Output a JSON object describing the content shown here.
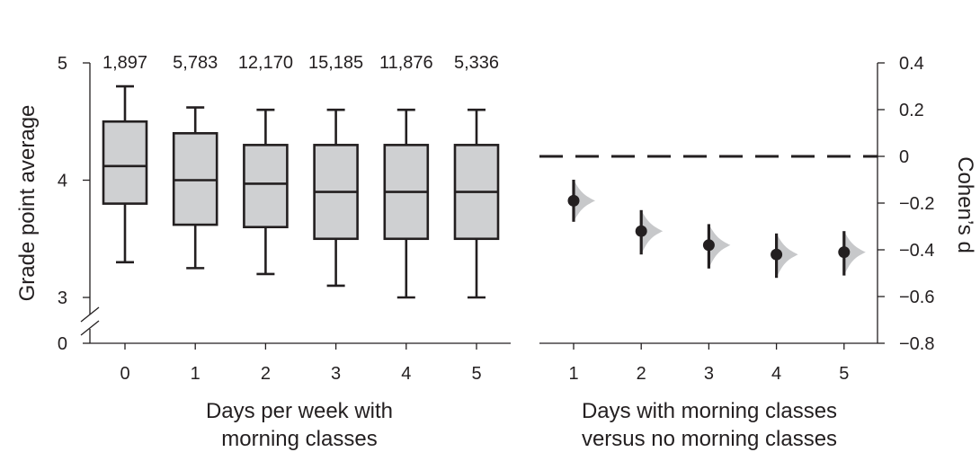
{
  "chart_data": [
    {
      "type": "box",
      "ylabel": "Grade point average",
      "xlabel_lines": [
        "Days per week with",
        "morning classes"
      ],
      "categories": [
        "0",
        "1",
        "2",
        "3",
        "4",
        "5"
      ],
      "counts": [
        "1,897",
        "5,783",
        "12,170",
        "15,185",
        "11,876",
        "5,336"
      ],
      "y_ticks": [
        "0",
        "3",
        "4",
        "5"
      ],
      "y_axis_break": [
        0,
        3
      ],
      "ylim": [
        3,
        5
      ],
      "boxes": [
        {
          "whisker_low": 3.3,
          "q1": 3.8,
          "median": 4.12,
          "q3": 4.5,
          "whisker_high": 4.8
        },
        {
          "whisker_low": 3.25,
          "q1": 3.62,
          "median": 4.0,
          "q3": 4.4,
          "whisker_high": 4.62
        },
        {
          "whisker_low": 3.2,
          "q1": 3.6,
          "median": 3.97,
          "q3": 4.3,
          "whisker_high": 4.6
        },
        {
          "whisker_low": 3.1,
          "q1": 3.5,
          "median": 3.9,
          "q3": 4.3,
          "whisker_high": 4.6
        },
        {
          "whisker_low": 3.0,
          "q1": 3.5,
          "median": 3.9,
          "q3": 4.3,
          "whisker_high": 4.6
        },
        {
          "whisker_low": 3.0,
          "q1": 3.5,
          "median": 3.9,
          "q3": 4.3,
          "whisker_high": 4.6
        }
      ]
    },
    {
      "type": "scatter",
      "ylabel": "Cohen’s d",
      "xlabel_lines": [
        "Days with morning classes",
        "versus no morning classes"
      ],
      "categories": [
        "1",
        "2",
        "3",
        "4",
        "5"
      ],
      "y_ticks": [
        "0.4",
        "0.2",
        "0",
        "−0.2",
        "−0.4",
        "−0.6",
        "−0.8"
      ],
      "ylim": [
        -0.8,
        0.4
      ],
      "reference_line": 0,
      "points": [
        {
          "x": "1",
          "d": -0.19,
          "ci_low": -0.28,
          "ci_high": -0.1
        },
        {
          "x": "2",
          "d": -0.32,
          "ci_low": -0.42,
          "ci_high": -0.23
        },
        {
          "x": "3",
          "d": -0.38,
          "ci_low": -0.48,
          "ci_high": -0.29
        },
        {
          "x": "4",
          "d": -0.42,
          "ci_low": -0.52,
          "ci_high": -0.33
        },
        {
          "x": "5",
          "d": -0.41,
          "ci_low": -0.51,
          "ci_high": -0.32
        }
      ],
      "colors": {
        "box_fill": "#cfd0d2",
        "density_fill": "#c7c8ca",
        "ink": "#231f20"
      }
    }
  ]
}
